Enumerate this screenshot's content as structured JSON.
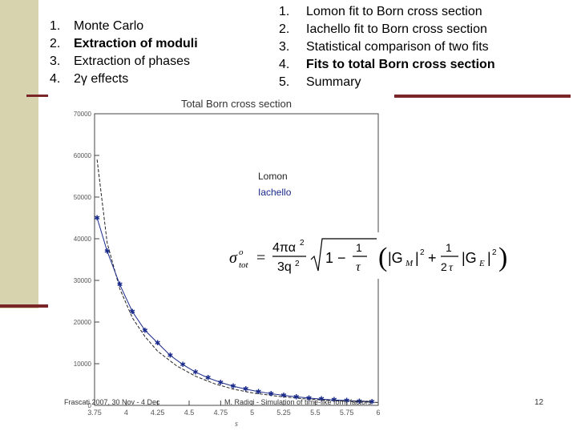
{
  "left_outline": {
    "items": [
      {
        "num": "1.",
        "label": "Monte Carlo",
        "bold": false
      },
      {
        "num": "2.",
        "label": "Extraction of moduli",
        "bold": true
      },
      {
        "num": "3.",
        "label": "Extraction of phases",
        "bold": false
      },
      {
        "num": "4.",
        "label": "2γ effects",
        "bold": false
      }
    ]
  },
  "right_outline": {
    "items": [
      {
        "num": "1.",
        "label": "Lomon fit to Born cross section",
        "bold": false
      },
      {
        "num": "2.",
        "label": "Iachello fit to Born cross section",
        "bold": false
      },
      {
        "num": "3.",
        "label": "Statistical comparison of two fits",
        "bold": false
      },
      {
        "num": "4.",
        "label": "Fits to total Born cross section",
        "bold": true
      },
      {
        "num": "5.",
        "label": "Summary",
        "bold": false
      }
    ]
  },
  "chart_data": {
    "type": "line",
    "title": "Total Born cross section",
    "xlabel": "s",
    "ylabel": "",
    "xlim": [
      3.75,
      6.0
    ],
    "ylim": [
      0,
      70000
    ],
    "x_ticks": [
      "3.75",
      "4",
      "4.25",
      "4.5",
      "4.75",
      "5",
      "5.25",
      "5.5",
      "5.75",
      "6"
    ],
    "y_ticks": [
      "70000",
      "60000",
      "50000",
      "40000",
      "30000",
      "20000",
      "10000",
      "0"
    ],
    "series": [
      {
        "name": "Lomon",
        "color": "#222222",
        "style": "dashed",
        "x": [
          3.77,
          3.85,
          3.95,
          4.05,
          4.15,
          4.25,
          4.4,
          4.55,
          4.7,
          4.85,
          5.0,
          5.2,
          5.4,
          5.6,
          5.8,
          6.0
        ],
        "y": [
          59000,
          39000,
          28000,
          21000,
          16500,
          13000,
          9500,
          7000,
          5200,
          3900,
          3000,
          2200,
          1600,
          1200,
          900,
          700
        ]
      },
      {
        "name": "Iachello",
        "color": "#1a2a8a",
        "style": "solid",
        "marker": "star",
        "x": [
          3.77,
          3.85,
          3.95,
          4.05,
          4.15,
          4.25,
          4.35,
          4.45,
          4.55,
          4.65,
          4.75,
          4.85,
          4.95,
          5.05,
          5.15,
          5.25,
          5.35,
          5.45,
          5.55,
          5.65,
          5.75,
          5.85,
          5.95
        ],
        "y": [
          45000,
          37000,
          29000,
          22500,
          18000,
          15000,
          12000,
          9800,
          8000,
          6600,
          5500,
          4600,
          3900,
          3300,
          2800,
          2400,
          2050,
          1750,
          1500,
          1300,
          1150,
          1000,
          900
        ]
      }
    ],
    "legend_position": "top-right"
  },
  "formula_image": {
    "alt": "sigma tot formula"
  },
  "footer": {
    "left": "Frascati 2007, 30 Nov - 4 Dec",
    "center": "M. Radici - Simulation of time-like form factors",
    "page": "12"
  },
  "colors": {
    "sidebar": "#d6d3ae",
    "accent_line": "#7a2628",
    "lomon": "#222222",
    "iachello": "#1a2a8a"
  }
}
